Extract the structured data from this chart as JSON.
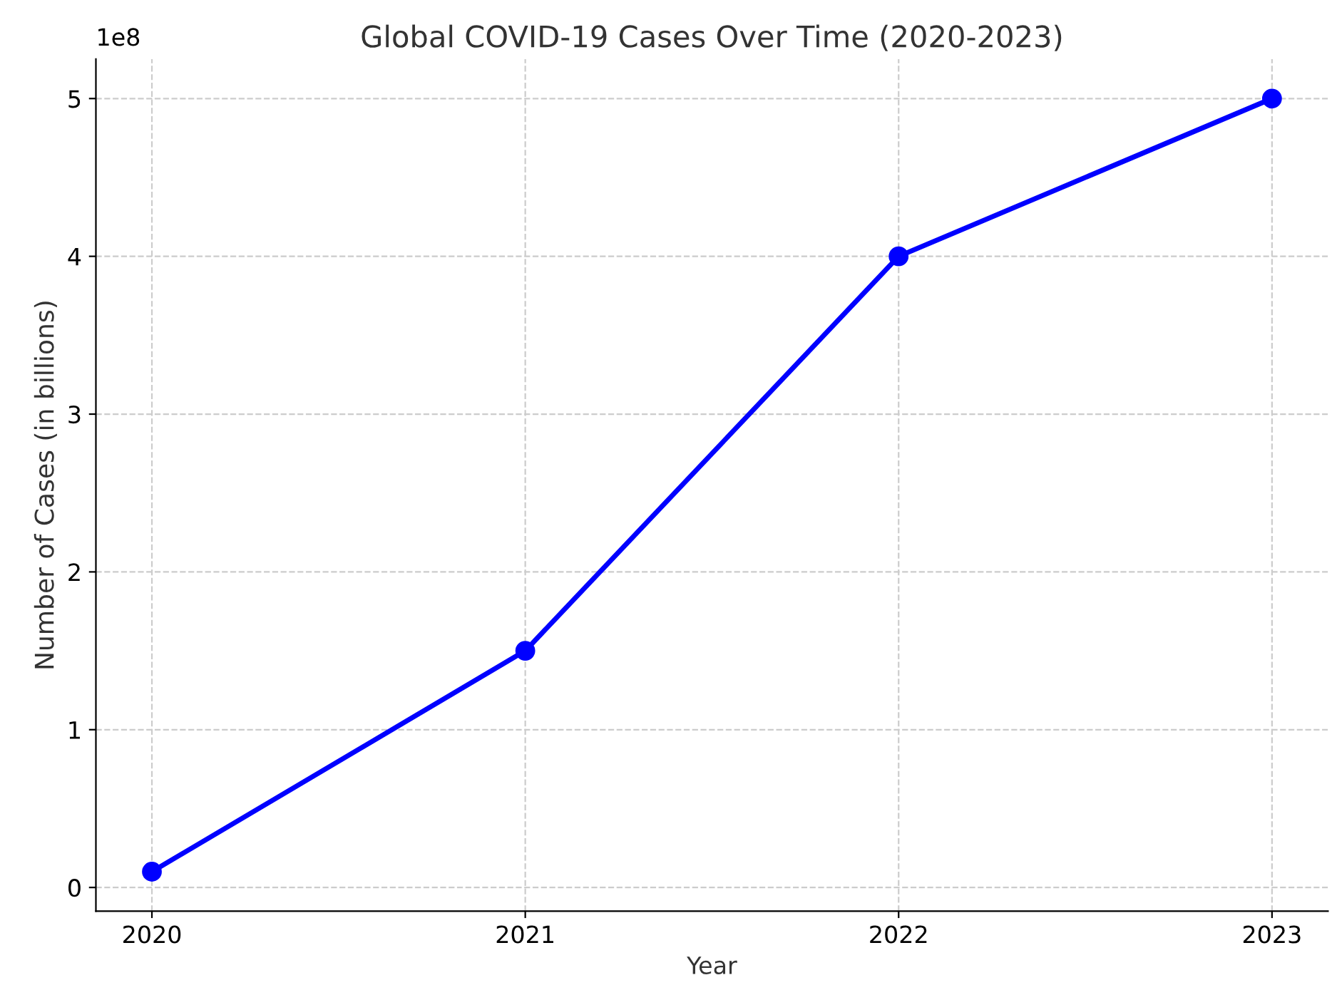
{
  "chart_data": {
    "type": "line",
    "title": "Global COVID-19 Cases Over Time (2020-2023)",
    "xlabel": "Year",
    "ylabel": "Number of Cases (in billions)",
    "x": [
      2020,
      2021,
      2022,
      2023
    ],
    "series": [
      {
        "color": "#0000ff",
        "values": [
          0.1,
          1.5,
          4,
          5
        ]
      }
    ],
    "xlim": [
      2019.85,
      2023.15
    ],
    "xticks": [
      2020,
      2021,
      2022,
      2023
    ],
    "ylim": [
      -0.15,
      5.25
    ],
    "yticks": [
      0,
      1,
      2,
      3,
      4,
      5
    ],
    "annotations": [
      "1e8"
    ],
    "grid": true,
    "marker": "circle",
    "line_style": "solid"
  }
}
